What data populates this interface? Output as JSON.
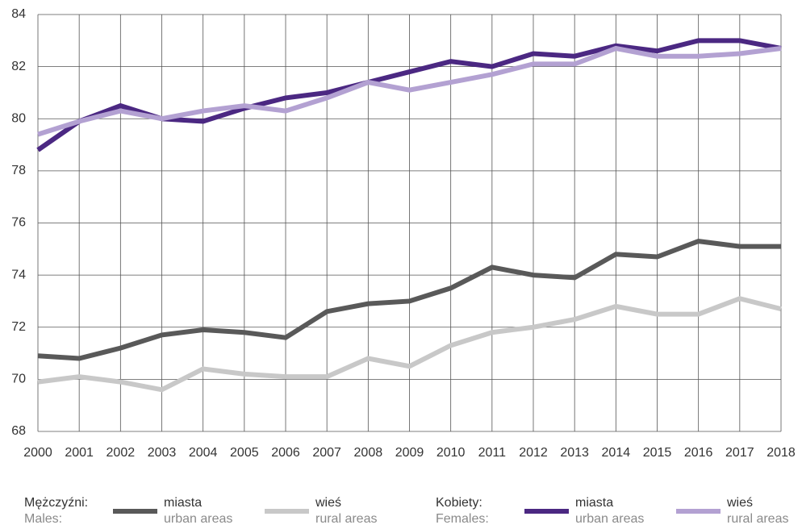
{
  "chart_data": {
    "type": "line",
    "categories": [
      "2000",
      "2001",
      "2002",
      "2003",
      "2004",
      "2005",
      "2006",
      "2007",
      "2008",
      "2009",
      "2010",
      "2011",
      "2012",
      "2013",
      "2014",
      "2015",
      "2016",
      "2017",
      "2018"
    ],
    "ylim": [
      68,
      84
    ],
    "yticks": [
      68,
      70,
      72,
      74,
      76,
      78,
      80,
      82,
      84
    ],
    "grid": true,
    "legend_groups": [
      {
        "label": "Mężczyźni:",
        "label_en": "Males:"
      },
      {
        "label": "Kobiety:",
        "label_en": "Females:"
      }
    ],
    "series": [
      {
        "name": "miasta",
        "name_en": "urban areas",
        "group": 0,
        "color": "#595959",
        "values": [
          70.9,
          70.8,
          71.2,
          71.7,
          71.9,
          71.8,
          71.6,
          72.6,
          72.9,
          73.0,
          73.5,
          74.3,
          74.0,
          73.9,
          74.8,
          74.7,
          75.3,
          75.1,
          75.1
        ]
      },
      {
        "name": "wieś",
        "name_en": "rural areas",
        "group": 0,
        "color": "#c8c8c8",
        "values": [
          69.9,
          70.1,
          69.9,
          69.6,
          70.4,
          70.2,
          70.1,
          70.1,
          70.8,
          70.5,
          71.3,
          71.8,
          72.0,
          72.3,
          72.8,
          72.5,
          72.5,
          73.1,
          72.7
        ]
      },
      {
        "name": "miasta",
        "name_en": "urban areas",
        "group": 1,
        "color": "#4b2882",
        "values": [
          78.8,
          79.9,
          80.5,
          80.0,
          79.9,
          80.4,
          80.8,
          81.0,
          81.4,
          81.8,
          82.2,
          82.0,
          82.5,
          82.4,
          82.8,
          82.6,
          83.0,
          83.0,
          82.7
        ]
      },
      {
        "name": "wieś",
        "name_en": "rural areas",
        "group": 1,
        "color": "#b3a1d2",
        "values": [
          79.4,
          79.9,
          80.3,
          80.0,
          80.3,
          80.5,
          80.3,
          80.8,
          81.4,
          81.1,
          81.4,
          81.7,
          82.1,
          82.1,
          82.7,
          82.4,
          82.4,
          82.5,
          82.7
        ]
      }
    ]
  }
}
